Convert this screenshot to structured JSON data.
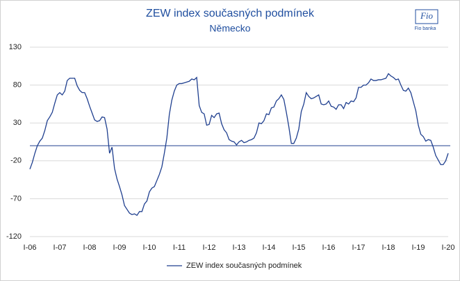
{
  "logo": {
    "mark": "Fio",
    "text": "Fio banka"
  },
  "chart_data": {
    "type": "line",
    "title": "ZEW index současných podmínek",
    "subtitle": "Německo",
    "categories": [
      "I-06",
      null,
      null,
      null,
      null,
      null,
      null,
      null,
      null,
      null,
      null,
      null,
      "I-07",
      null,
      null,
      null,
      null,
      null,
      null,
      null,
      null,
      null,
      null,
      null,
      "I-08",
      null,
      null,
      null,
      null,
      null,
      null,
      null,
      null,
      null,
      null,
      null,
      "I-09",
      null,
      null,
      null,
      null,
      null,
      null,
      null,
      null,
      null,
      null,
      null,
      "I-10",
      null,
      null,
      null,
      null,
      null,
      null,
      null,
      null,
      null,
      null,
      null,
      "I-11",
      null,
      null,
      null,
      null,
      null,
      null,
      null,
      null,
      null,
      null,
      null,
      "I-12",
      null,
      null,
      null,
      null,
      null,
      null,
      null,
      null,
      null,
      null,
      null,
      "I-13",
      null,
      null,
      null,
      null,
      null,
      null,
      null,
      null,
      null,
      null,
      null,
      "I-14",
      null,
      null,
      null,
      null,
      null,
      null,
      null,
      null,
      null,
      null,
      null,
      "I-15",
      null,
      null,
      null,
      null,
      null,
      null,
      null,
      null,
      null,
      null,
      null,
      "I-16",
      null,
      null,
      null,
      null,
      null,
      null,
      null,
      null,
      null,
      null,
      null,
      "I-17",
      null,
      null,
      null,
      null,
      null,
      null,
      null,
      null,
      null,
      null,
      null,
      "I-18",
      null,
      null,
      null,
      null,
      null,
      null,
      null,
      null,
      null,
      null,
      null,
      "I-19",
      null,
      null,
      null,
      null,
      null,
      null,
      null,
      null,
      null,
      null,
      null,
      "I-20"
    ],
    "series": [
      {
        "name": "ZEW index současných podmínek",
        "color": "#1f3f8f",
        "values": [
          -31,
          -22,
          -10,
          0,
          6,
          10,
          20,
          33,
          38,
          44,
          56,
          67,
          70,
          67,
          72,
          86,
          89,
          89,
          89,
          79,
          73,
          70,
          70,
          62,
          52,
          43,
          34,
          32,
          33,
          38,
          37,
          22,
          -10,
          -2,
          -30,
          -44,
          -54,
          -65,
          -79,
          -84,
          -89,
          -91,
          -90,
          -92,
          -87,
          -87,
          -77,
          -73,
          -61,
          -56,
          -54,
          -46,
          -38,
          -28,
          -10,
          10,
          41,
          60,
          72,
          80,
          82,
          82,
          83,
          84,
          85,
          88,
          87,
          90,
          53,
          44,
          42,
          27,
          28,
          40,
          37,
          42,
          43,
          29,
          21,
          17,
          8,
          6,
          5,
          1,
          5,
          7,
          4,
          5,
          7,
          8,
          10,
          17,
          30,
          29,
          33,
          42,
          41,
          50,
          51,
          59,
          62,
          67,
          61,
          44,
          25,
          3,
          3,
          10,
          22,
          45,
          55,
          70,
          65,
          62,
          63,
          65,
          67,
          55,
          54,
          55,
          59,
          52,
          51,
          48,
          54,
          54,
          49,
          57,
          55,
          59,
          58,
          63,
          77,
          77,
          80,
          80,
          83,
          88,
          86,
          86,
          87,
          87,
          88,
          89,
          95,
          92,
          90,
          87,
          88,
          80,
          73,
          72,
          76,
          70,
          58,
          46,
          27,
          15,
          12,
          6,
          8,
          7,
          -2,
          -13,
          -19,
          -25,
          -25,
          -20,
          -10
        ]
      }
    ],
    "ylim": [
      -120,
      130
    ],
    "yticks": [
      -120,
      -70,
      -20,
      30,
      80,
      130
    ],
    "grid": true,
    "legend": "bottom"
  }
}
